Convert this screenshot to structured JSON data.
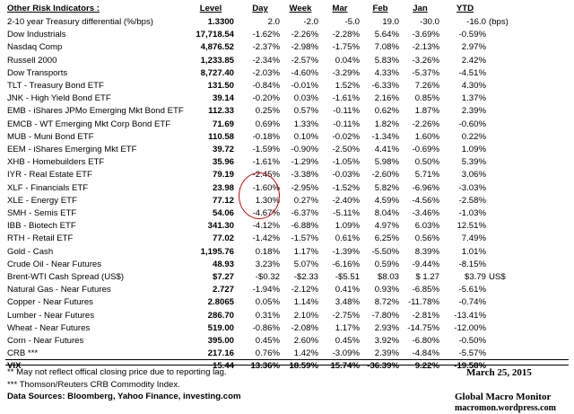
{
  "header": {
    "title": "Other Risk Indicators :",
    "level": "Level",
    "day": "Day",
    "week": "Week",
    "mar": "Mar",
    "feb": "Feb",
    "jan": "Jan",
    "ytd": "YTD"
  },
  "rows": [
    {
      "name": "2-10 year Treasury differential (%/bps)",
      "level": "1.3300",
      "day": "2.0",
      "week": "-2.0",
      "mar": "-5.0",
      "feb": "19.0",
      "jan": "-30.0",
      "ytd": "-16.0",
      "unit": "(bps)"
    },
    {
      "name": "Dow Industrials",
      "level": "17,718.54",
      "day": "-1.62%",
      "week": "-2.26%",
      "mar": "-2.28%",
      "feb": "5.64%",
      "jan": "-3.69%",
      "ytd": "-0.59%",
      "unit": ""
    },
    {
      "name": "Nasdaq Comp",
      "level": "4,876.52",
      "day": "-2.37%",
      "week": "-2.98%",
      "mar": "-1.75%",
      "feb": "7.08%",
      "jan": "-2.13%",
      "ytd": "2.97%",
      "unit": ""
    },
    {
      "name": "Russell 2000",
      "level": "1,233.85",
      "day": "-2.34%",
      "week": "-2.57%",
      "mar": "0.04%",
      "feb": "5.83%",
      "jan": "-3.26%",
      "ytd": "2.42%",
      "unit": ""
    },
    {
      "name": "Dow Transports",
      "level": "8,727.40",
      "day": "-2.03%",
      "week": "-4.60%",
      "mar": "-3.29%",
      "feb": "4.33%",
      "jan": "-5.37%",
      "ytd": "-4.51%",
      "unit": ""
    },
    {
      "name": "TLT - Treasury Bond ETF",
      "level": "131.50",
      "day": "-0.84%",
      "week": "-0.01%",
      "mar": "1.52%",
      "feb": "-6.33%",
      "jan": "7.26%",
      "ytd": "4.30%",
      "unit": ""
    },
    {
      "name": "JNK - High Yield Bond ETF",
      "level": "39.14",
      "day": "-0.20%",
      "week": "0.03%",
      "mar": "-1.61%",
      "feb": "2.16%",
      "jan": "0.85%",
      "ytd": "1.37%",
      "unit": ""
    },
    {
      "name": "EMB - iShares JPMo Emerging Mkt Bond ETF",
      "level": "112.33",
      "day": "0.25%",
      "week": "0.57%",
      "mar": "-0.11%",
      "feb": "0.62%",
      "jan": "1.87%",
      "ytd": "2.39%",
      "unit": ""
    },
    {
      "name": "EMCB - WT Emerging Mkt Corp Bond ETF",
      "level": "71.69",
      "day": "0.69%",
      "week": "1.33%",
      "mar": "-0.11%",
      "feb": "1.82%",
      "jan": "-2.26%",
      "ytd": "-0.60%",
      "unit": ""
    },
    {
      "name": "MUB - Muni Bond ETF",
      "level": "110.58",
      "day": "-0.18%",
      "week": "0.10%",
      "mar": "-0.02%",
      "feb": "-1.34%",
      "jan": "1.60%",
      "ytd": "0.22%",
      "unit": ""
    },
    {
      "name": "EEM - iShares Emerging Mkt ETF",
      "level": "39.72",
      "day": "-1.59%",
      "week": "-0.90%",
      "mar": "-2.50%",
      "feb": "4.41%",
      "jan": "-0.69%",
      "ytd": "1.09%",
      "unit": ""
    },
    {
      "name": "XHB - Homebuilders ETF",
      "level": "35.96",
      "day": "-1.61%",
      "week": "-1.29%",
      "mar": "-1.05%",
      "feb": "5.98%",
      "jan": "0.50%",
      "ytd": "5.39%",
      "unit": ""
    },
    {
      "name": "IYR - Real Estate ETF",
      "level": "79.19",
      "day": "-2.45%",
      "week": "-3.38%",
      "mar": "-0.03%",
      "feb": "-2.60%",
      "jan": "5.71%",
      "ytd": "3.06%",
      "unit": ""
    },
    {
      "name": "XLF - Financials ETF",
      "level": "23.98",
      "day": "-1.60%",
      "week": "-2.95%",
      "mar": "-1.52%",
      "feb": "5.82%",
      "jan": "-6.96%",
      "ytd": "-3.03%",
      "unit": ""
    },
    {
      "name": "XLE - Energy ETF",
      "level": "77.12",
      "day": "1.30%",
      "week": "0.27%",
      "mar": "-2.40%",
      "feb": "4.59%",
      "jan": "-4.56%",
      "ytd": "-2.58%",
      "unit": ""
    },
    {
      "name": "SMH - Semis ETF",
      "level": "54.06",
      "day": "-4.67%",
      "week": "-6.37%",
      "mar": "-5.11%",
      "feb": "8.04%",
      "jan": "-3.46%",
      "ytd": "-1.03%",
      "unit": ""
    },
    {
      "name": "IBB - Biotech ETF",
      "level": "341.30",
      "day": "-4.12%",
      "week": "-6.88%",
      "mar": "1.09%",
      "feb": "4.97%",
      "jan": "6.03%",
      "ytd": "12.51%",
      "unit": ""
    },
    {
      "name": "RTH - Retail ETF",
      "level": "77.02",
      "day": "-1.42%",
      "week": "-1.57%",
      "mar": "0.61%",
      "feb": "6.25%",
      "jan": "0.56%",
      "ytd": "7.49%",
      "unit": ""
    },
    {
      "name": "Gold - Cash",
      "level": "1,195.76",
      "day": "0.18%",
      "week": "1.17%",
      "mar": "-1.39%",
      "feb": "-5.50%",
      "jan": "8.39%",
      "ytd": "1.01%",
      "unit": ""
    },
    {
      "name": "Crude Oil - Near Futures",
      "level": "48.93",
      "day": "3.23%",
      "week": "5.07%",
      "mar": "-6.16%",
      "feb": "0.59%",
      "jan": "-9.44%",
      "ytd": "-8.15%",
      "unit": ""
    },
    {
      "name": "Brent-WTI Cash Spread (US$)",
      "level": "$7.27",
      "day": "-$0.32",
      "week": "-$2.33",
      "mar": "-$5.51",
      "feb": "$8.03",
      "jan": "$ 1.27",
      "ytd": "$3.79",
      "unit": "US$"
    },
    {
      "name": "Natural Gas - Near Futures",
      "level": "2.727",
      "day": "-1.94%",
      "week": "-2.12%",
      "mar": "0.41%",
      "feb": "0.93%",
      "jan": "-6.85%",
      "ytd": "-5.61%",
      "unit": ""
    },
    {
      "name": "Copper - Near Futures",
      "level": "2.8065",
      "day": "0.05%",
      "week": "1.14%",
      "mar": "3.48%",
      "feb": "8.72%",
      "jan": "-11.78%",
      "ytd": "-0.74%",
      "unit": ""
    },
    {
      "name": "Lumber - Near Futures",
      "level": "286.70",
      "day": "0.31%",
      "week": "2.10%",
      "mar": "-2.75%",
      "feb": "-7.80%",
      "jan": "-2.81%",
      "ytd": "-13.41%",
      "unit": ""
    },
    {
      "name": "Wheat - Near Futures",
      "level": "519.00",
      "day": "-0.86%",
      "week": "-2.08%",
      "mar": "1.17%",
      "feb": "2.93%",
      "jan": "-14.75%",
      "ytd": "-12.00%",
      "unit": ""
    },
    {
      "name": "Corn - Near Futures",
      "level": "395.00",
      "day": "0.45%",
      "week": "2.60%",
      "mar": "0.45%",
      "feb": "3.92%",
      "jan": "-6.80%",
      "ytd": "-0.50%",
      "unit": ""
    },
    {
      "name": "CRB ***",
      "level": "217.16",
      "day": "0.76%",
      "week": "1.42%",
      "mar": "-3.09%",
      "feb": "2.39%",
      "jan": "-4.84%",
      "ytd": "-5.57%",
      "unit": ""
    },
    {
      "name": "VIX",
      "level": "15.44",
      "day": "13.36%",
      "week": "18.59%",
      "mar": "15.74%",
      "feb": "-36.39%",
      "jan": "9.22%",
      "ytd": "-19.58%",
      "unit": "",
      "bold": true
    }
  ],
  "footer": {
    "note1": "**  May not reflect offical closing price due to reporting lag.",
    "note2": "*** Thomson/Reuters CRB Commodity Index.",
    "sources": "Data Sources:  Bloomberg,  Yahoo Finance, investing.com",
    "date": "March 25, 2015",
    "brand": "Global Macro Monitor",
    "site": "macromon.wordpress.com"
  },
  "highlight_color": "#d01010"
}
